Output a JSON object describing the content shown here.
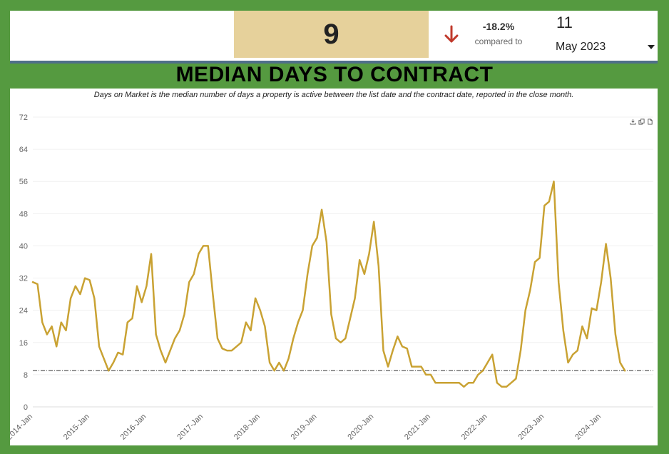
{
  "kpi": {
    "current_value": "9",
    "change": "-18.2%",
    "compared_label": "compared to",
    "previous_value": "11",
    "period": "May 2023",
    "change_color": "#c0392b"
  },
  "colors": {
    "background": "#559a40",
    "value_box": "#e6d19b",
    "line": "#c9a233",
    "reference_line": "#333333"
  },
  "chart_data": {
    "type": "line",
    "title": "MEDIAN DAYS TO CONTRACT",
    "subtitle": "Days on Market is the median number of days a property is active between the list date and the contract date, reported in the close month.",
    "xlabel": "",
    "ylabel": "",
    "ylim": [
      0,
      72
    ],
    "yticks": [
      0,
      8,
      16,
      24,
      32,
      40,
      48,
      56,
      64,
      72
    ],
    "grid": true,
    "xticks": [
      "2014-Jan",
      "2015-Jan",
      "2016-Jan",
      "2017-Jan",
      "2018-Jan",
      "2019-Jan",
      "2020-Jan",
      "2021-Jan",
      "2022-Jan",
      "2023-Jan",
      "2024-Jan"
    ],
    "reference_line": 9,
    "series": [
      {
        "values": [
          31,
          30.5,
          21,
          18,
          20,
          15,
          21,
          19,
          27,
          30,
          28,
          32,
          31.5,
          27,
          15,
          12,
          9,
          11,
          13.5,
          13,
          21,
          22,
          30,
          26,
          30,
          38,
          18,
          14,
          11,
          14,
          17,
          19,
          23,
          31,
          33,
          38,
          40,
          40,
          28,
          17,
          14.5,
          14,
          14,
          15,
          16,
          21,
          19,
          27,
          24,
          20,
          11,
          9,
          11,
          9,
          12,
          17,
          21,
          24,
          33,
          40,
          42,
          49,
          41,
          23,
          17,
          16,
          17,
          22,
          27,
          36.5,
          33,
          38,
          46,
          35,
          14,
          10,
          14,
          17.5,
          15,
          14.5,
          10,
          10,
          10,
          8,
          8,
          6,
          6,
          6,
          6,
          6,
          6,
          5,
          6,
          6,
          8,
          9,
          11,
          13,
          6,
          5,
          5,
          6,
          7,
          14,
          24,
          29,
          36,
          37,
          50,
          51,
          56,
          31,
          19,
          11,
          13,
          14,
          20,
          17,
          24.5,
          24,
          31,
          40.5,
          32,
          18,
          11,
          9
        ]
      }
    ]
  }
}
